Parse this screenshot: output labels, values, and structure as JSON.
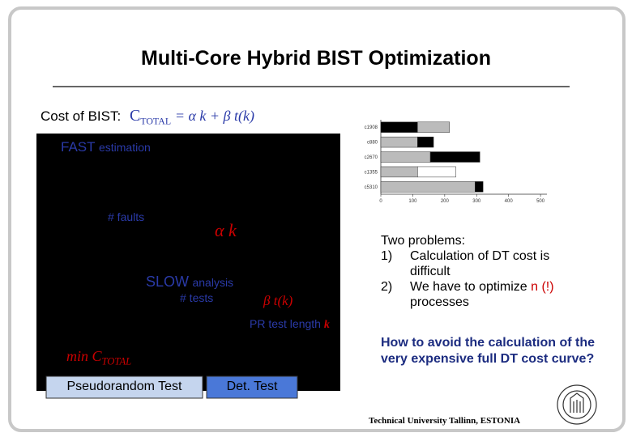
{
  "title": "Multi-Core Hybrid BIST Optimization",
  "formula": {
    "label": "Cost of BIST:",
    "lhs": "C",
    "lhs_sub": "TOTAL",
    "rhs": "= α k + β t(k)"
  },
  "diagram": {
    "fast": "FAST",
    "fast_note": "estimation",
    "faults": "# faults",
    "alpha_k": "α k",
    "slow": "SLOW",
    "slow_note": "analysis",
    "tests": "# tests",
    "beta_tk": "β t(k)",
    "pr_length": "PR test length",
    "k": "k",
    "min": "min C",
    "min_sub": "TOTAL",
    "pr_box": "Pseudorandom Test",
    "det_box": "Det. Test"
  },
  "chart_data": {
    "type": "bar",
    "orientation": "horizontal",
    "stacked": true,
    "categories": [
      "c1908",
      "c880",
      "c2670",
      "c1355",
      "c5310"
    ],
    "series": [
      {
        "colors": [
          "#000000",
          "#bbbbbb",
          "#bbbbbb",
          "#bbbbbb",
          "#bbbbbb"
        ],
        "values": [
          115,
          115,
          155,
          115,
          295
        ]
      },
      {
        "colors": [
          "#bbbbbb",
          "#000000",
          "#000000",
          "#ffffff",
          "#000000"
        ],
        "values": [
          100,
          50,
          155,
          120,
          25
        ]
      }
    ],
    "xlim": [
      0,
      520
    ],
    "xticks": [
      0,
      100,
      200,
      300,
      400,
      500
    ]
  },
  "problems": {
    "heading": "Two problems:",
    "items": [
      {
        "num": "1)",
        "text": "Calculation of DT cost is difficult"
      },
      {
        "num": "2)",
        "text": "We have to optimize",
        "highlight": "n (!)",
        "tail": "processes"
      }
    ]
  },
  "question": "How to avoid the calculation of the very expensive full DT cost curve?",
  "footer": "Technical University Tallinn, ESTONIA"
}
